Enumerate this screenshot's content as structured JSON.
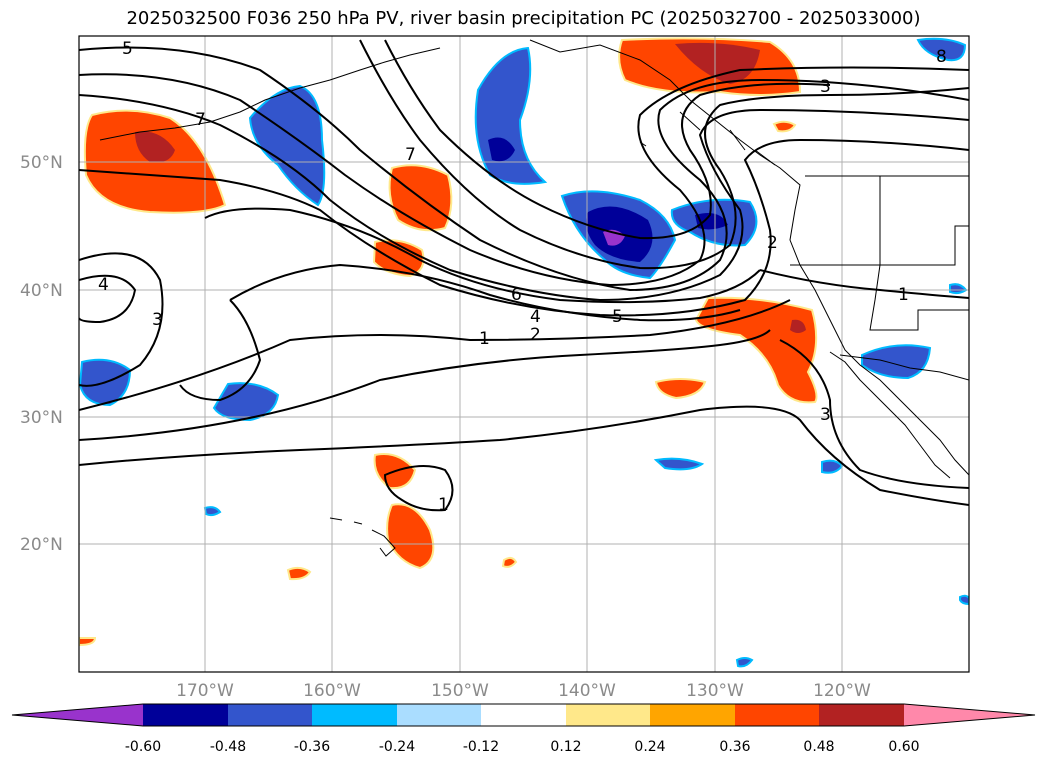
{
  "title": "2025032500 F036 250 hPa PV, river basin precipitation PC (2025032700 - 2025033000)",
  "map": {
    "lat_labels": [
      "50°N",
      "40°N",
      "30°N",
      "20°N"
    ],
    "lon_labels": [
      "170°W",
      "160°W",
      "150°W",
      "140°W",
      "130°W",
      "120°W"
    ],
    "contour_labels": [
      "5",
      "7",
      "4",
      "3",
      "7",
      "6",
      "4",
      "5",
      "2",
      "1",
      "2",
      "1",
      "3",
      "1",
      "3",
      "8"
    ]
  },
  "colorbar": {
    "labels": [
      "-0.60",
      "-0.48",
      "-0.36",
      "-0.24",
      "-0.12",
      "0.12",
      "0.24",
      "0.36",
      "0.48",
      "0.60"
    ],
    "colors": [
      "#9933cc",
      "#000099",
      "#3355cc",
      "#00bbff",
      "#aaddff",
      "#ffffff",
      "#ffe88a",
      "#ffa500",
      "#ff4500",
      "#b22222",
      "#ff88aa"
    ]
  },
  "palette": {
    "magenta": "#9933cc",
    "navy": "#000099",
    "blue": "#3355cc",
    "cyan": "#00bbff",
    "lightblue": "#aaddff",
    "yellow": "#ffe88a",
    "orange": "#ffa500",
    "redorange": "#ff4500",
    "darkred": "#b22222",
    "pink": "#ff88aa"
  }
}
